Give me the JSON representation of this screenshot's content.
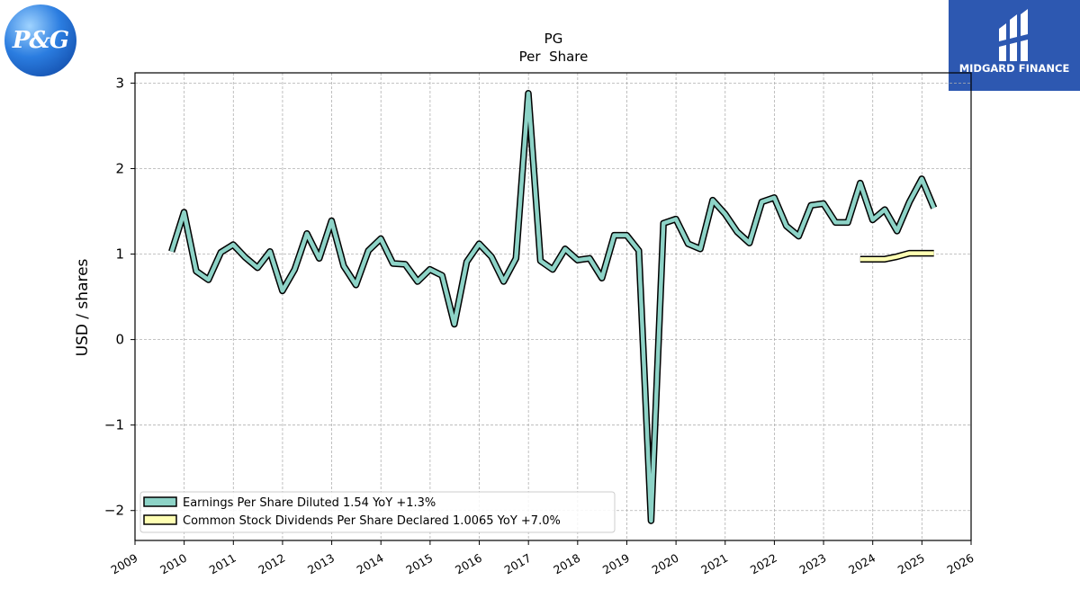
{
  "logos": {
    "left_text": "P&G",
    "right_text": "MIDGARD FINANCE"
  },
  "chart_data": {
    "type": "line",
    "title": "PG",
    "subtitle": "Per  Share",
    "ylabel": "USD / shares",
    "xlabel": "",
    "xlim": [
      2009,
      2026
    ],
    "ylim": [
      -2.35,
      3.12
    ],
    "x_ticks": [
      "2009",
      "2010",
      "2011",
      "2012",
      "2013",
      "2014",
      "2015",
      "2016",
      "2017",
      "2018",
      "2019",
      "2020",
      "2021",
      "2022",
      "2023",
      "2024",
      "2025",
      "2026"
    ],
    "y_ticks": [
      "−2",
      "−1",
      "0",
      "1",
      "2",
      "3"
    ],
    "grid": true,
    "legend_position": "bottom-left",
    "series": [
      {
        "name": "Earnings Per Share Diluted  1.54 YoY +1.3%",
        "color": "#8dd3c7",
        "points": [
          [
            "2009-09-30",
            1.03
          ],
          [
            "2009-12-31",
            1.49
          ],
          [
            "2010-03-31",
            0.8
          ],
          [
            "2010-06-30",
            0.7
          ],
          [
            "2010-09-30",
            1.02
          ],
          [
            "2010-12-31",
            1.11
          ],
          [
            "2011-03-31",
            0.96
          ],
          [
            "2011-06-30",
            0.84
          ],
          [
            "2011-09-30",
            1.03
          ],
          [
            "2011-12-31",
            0.57
          ],
          [
            "2012-03-31",
            0.82
          ],
          [
            "2012-06-30",
            1.24
          ],
          [
            "2012-09-30",
            0.95
          ],
          [
            "2012-12-31",
            1.39
          ],
          [
            "2013-03-31",
            0.86
          ],
          [
            "2013-06-30",
            0.64
          ],
          [
            "2013-09-30",
            1.04
          ],
          [
            "2013-12-31",
            1.18
          ],
          [
            "2014-03-31",
            0.89
          ],
          [
            "2014-06-30",
            0.88
          ],
          [
            "2014-09-30",
            0.68
          ],
          [
            "2014-12-31",
            0.82
          ],
          [
            "2015-03-31",
            0.75
          ],
          [
            "2015-06-30",
            0.18
          ],
          [
            "2015-09-30",
            0.91
          ],
          [
            "2015-12-31",
            1.12
          ],
          [
            "2016-03-31",
            0.97
          ],
          [
            "2016-06-30",
            0.68
          ],
          [
            "2016-09-30",
            0.95
          ],
          [
            "2016-12-31",
            2.88
          ],
          [
            "2017-03-31",
            0.92
          ],
          [
            "2017-06-30",
            0.82
          ],
          [
            "2017-09-30",
            1.06
          ],
          [
            "2017-12-31",
            0.93
          ],
          [
            "2018-03-31",
            0.95
          ],
          [
            "2018-06-30",
            0.72
          ],
          [
            "2018-09-30",
            1.22
          ],
          [
            "2018-12-31",
            1.22
          ],
          [
            "2019-03-31",
            1.04
          ],
          [
            "2019-06-30",
            -2.12
          ],
          [
            "2019-09-30",
            1.36
          ],
          [
            "2019-12-31",
            1.41
          ],
          [
            "2020-03-31",
            1.12
          ],
          [
            "2020-06-30",
            1.06
          ],
          [
            "2020-09-30",
            1.63
          ],
          [
            "2020-12-31",
            1.47
          ],
          [
            "2021-03-31",
            1.26
          ],
          [
            "2021-06-30",
            1.13
          ],
          [
            "2021-09-30",
            1.61
          ],
          [
            "2021-12-31",
            1.66
          ],
          [
            "2022-03-31",
            1.33
          ],
          [
            "2022-06-30",
            1.21
          ],
          [
            "2022-09-30",
            1.57
          ],
          [
            "2022-12-31",
            1.59
          ],
          [
            "2023-03-31",
            1.37
          ],
          [
            "2023-06-30",
            1.37
          ],
          [
            "2023-09-30",
            1.83
          ],
          [
            "2023-12-31",
            1.4
          ],
          [
            "2024-03-31",
            1.52
          ],
          [
            "2024-06-30",
            1.27
          ],
          [
            "2024-09-30",
            1.61
          ],
          [
            "2024-12-31",
            1.88
          ],
          [
            "2025-03-31",
            1.54
          ]
        ]
      },
      {
        "name": "Common Stock Dividends Per Share Declared  1.0065 YoY +7.0%",
        "color": "#ffffb3",
        "points": [
          [
            "2023-09-30",
            0.94
          ],
          [
            "2023-12-31",
            0.94
          ],
          [
            "2024-03-31",
            0.94
          ],
          [
            "2024-06-30",
            0.97
          ],
          [
            "2024-09-30",
            1.01
          ],
          [
            "2024-12-31",
            1.01
          ],
          [
            "2025-03-31",
            1.01
          ]
        ]
      }
    ]
  }
}
